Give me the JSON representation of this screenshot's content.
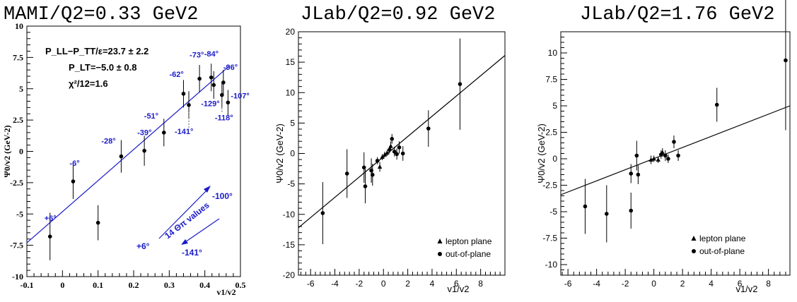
{
  "chart_data": [
    {
      "type": "scatter",
      "title": "MAMI/Q2=0.33 GeV2",
      "xlabel": "v1/v2",
      "ylabel": "Ψ0/v2 (GeV-2)",
      "xlim": [
        -0.1,
        0.5
      ],
      "ylim": [
        -10,
        10
      ],
      "xticks": [
        "-0.1",
        "0",
        "0.1",
        "0.2",
        "0.3",
        "0.4",
        "0.5"
      ],
      "yticks": [
        "-10",
        "-7.5",
        "-5",
        "-2.5",
        "0",
        "2.5",
        "5",
        "7.5",
        "10"
      ],
      "fit_line": {
        "x1": -0.1,
        "y1": -7.3,
        "x2": 0.47,
        "y2": 6.85,
        "color": "#1a1acc"
      },
      "annotations": [
        "P_LL−P_TT/ε=23.7 ± 2.2",
        "P_LT=−5.0 ± 0.8",
        "χ²/12=1.6"
      ],
      "arrow_labels": {
        "up": "-100°",
        "down": "-141°",
        "start": "+6°",
        "caption": "14 Θπ values"
      },
      "points": [
        {
          "x": -0.035,
          "y": -6.8,
          "err": 1.9,
          "angle": "+6°"
        },
        {
          "x": 0.03,
          "y": -2.4,
          "err": 1.4,
          "angle": "-6°"
        },
        {
          "x": 0.1,
          "y": -5.7,
          "err": 1.4,
          "angle": ""
        },
        {
          "x": 0.165,
          "y": -0.4,
          "err": 1.3,
          "angle": "-28°"
        },
        {
          "x": 0.23,
          "y": 0.05,
          "err": 1.2,
          "angle": "-39°"
        },
        {
          "x": 0.285,
          "y": 1.5,
          "err": 1.1,
          "angle": "-51°"
        },
        {
          "x": 0.34,
          "y": 4.6,
          "err": 1.1,
          "angle": "-62°"
        },
        {
          "x": 0.355,
          "y": 3.7,
          "err": 1.1,
          "angle": "-141°"
        },
        {
          "x": 0.385,
          "y": 5.8,
          "err": 1.1,
          "angle": "-73°"
        },
        {
          "x": 0.418,
          "y": 5.9,
          "err": 1.1,
          "angle": "-84°"
        },
        {
          "x": 0.425,
          "y": 5.3,
          "err": 1.1,
          "angle": "-129°"
        },
        {
          "x": 0.448,
          "y": 4.5,
          "err": 1.0,
          "angle": "-118°"
        },
        {
          "x": 0.452,
          "y": 5.5,
          "err": 1.0,
          "angle": "-96°"
        },
        {
          "x": 0.465,
          "y": 3.9,
          "err": 1.0,
          "angle": "-107°"
        }
      ]
    },
    {
      "type": "scatter",
      "title": "JLab/Q2=0.92 GeV2",
      "xlabel": "v1/v2",
      "ylabel": "Ψ0/v2 (GeV-2)",
      "xlim": [
        -7,
        10
      ],
      "ylim": [
        -20,
        20
      ],
      "xticks": [
        "-6",
        "-4",
        "-2",
        "0",
        "2",
        "4",
        "6",
        "8"
      ],
      "yticks": [
        "-20",
        "-15",
        "-10",
        "-5",
        "0",
        "5",
        "10",
        "15",
        "20"
      ],
      "fit_line": {
        "x1": -7,
        "y1": -12.2,
        "x2": 10,
        "y2": 16.1,
        "color": "#000000"
      },
      "legend": [
        "lepton plane",
        "out-of-plane"
      ],
      "legend_position": "bottom-right",
      "points": [
        {
          "x": -5.0,
          "y": -9.8,
          "err": 5.1,
          "marker": "circle"
        },
        {
          "x": -3.0,
          "y": -3.3,
          "err": 4.0,
          "marker": "circle"
        },
        {
          "x": -1.6,
          "y": -2.3,
          "err": 2.5,
          "marker": "circle"
        },
        {
          "x": -1.5,
          "y": -5.4,
          "err": 2.8,
          "marker": "circle"
        },
        {
          "x": -1.0,
          "y": -2.8,
          "err": 2.0,
          "marker": "circle"
        },
        {
          "x": -0.9,
          "y": -3.5,
          "err": 1.8,
          "marker": "circle"
        },
        {
          "x": -0.5,
          "y": -1.2,
          "err": 0.6,
          "marker": "circle"
        },
        {
          "x": -0.3,
          "y": -2.2,
          "err": 0.8,
          "marker": "triangle"
        },
        {
          "x": -0.1,
          "y": -0.6,
          "err": 0.5,
          "marker": "triangle"
        },
        {
          "x": 0.1,
          "y": -0.2,
          "err": 0.5,
          "marker": "triangle"
        },
        {
          "x": 0.3,
          "y": 0.1,
          "err": 0.5,
          "marker": "triangle"
        },
        {
          "x": 0.5,
          "y": 0.6,
          "err": 0.6,
          "marker": "circle"
        },
        {
          "x": 0.6,
          "y": 1.2,
          "err": 0.8,
          "marker": "triangle"
        },
        {
          "x": 0.7,
          "y": 2.4,
          "err": 0.8,
          "marker": "circle"
        },
        {
          "x": 0.9,
          "y": 0.3,
          "err": 0.8,
          "marker": "circle"
        },
        {
          "x": 1.1,
          "y": -0.1,
          "err": 0.9,
          "marker": "circle"
        },
        {
          "x": 1.3,
          "y": 1.0,
          "err": 1.0,
          "marker": "circle"
        },
        {
          "x": 1.6,
          "y": 0.0,
          "err": 1.2,
          "marker": "circle"
        },
        {
          "x": 3.7,
          "y": 4.1,
          "err": 3.0,
          "marker": "circle"
        },
        {
          "x": 6.3,
          "y": 11.4,
          "err": 7.5,
          "marker": "circle"
        }
      ]
    },
    {
      "type": "scatter",
      "title": "JLab/Q2=1.76 GeV2",
      "xlabel": "v1/v2",
      "ylabel": "Ψ0/v2 (GeV-2)",
      "xlim": [
        -6.5,
        9.5
      ],
      "ylim": [
        -11,
        12
      ],
      "xticks": [
        "-6",
        "-4",
        "-2",
        "0",
        "2",
        "4",
        "6",
        "8"
      ],
      "yticks": [
        "-10",
        "-7.5",
        "-5",
        "-2.5",
        "0",
        "2.5",
        "5",
        "7.5",
        "10"
      ],
      "fit_line": {
        "x1": -6.5,
        "y1": -3.4,
        "x2": 9.5,
        "y2": 5.0,
        "color": "#000000"
      },
      "legend": [
        "lepton plane",
        "out-of-plane"
      ],
      "legend_position": "bottom-right",
      "points": [
        {
          "x": -4.8,
          "y": -4.5,
          "err": 2.6,
          "marker": "circle"
        },
        {
          "x": -3.3,
          "y": -5.2,
          "err": 2.7,
          "marker": "circle"
        },
        {
          "x": -1.6,
          "y": -4.9,
          "err": 1.7,
          "marker": "circle"
        },
        {
          "x": -1.6,
          "y": -1.4,
          "err": 0.9,
          "marker": "circle"
        },
        {
          "x": -1.2,
          "y": 0.3,
          "err": 1.4,
          "marker": "circle"
        },
        {
          "x": -1.1,
          "y": -1.5,
          "err": 0.9,
          "marker": "circle"
        },
        {
          "x": -0.2,
          "y": -0.1,
          "err": 0.4,
          "marker": "triangle"
        },
        {
          "x": 0.0,
          "y": 0.0,
          "err": 0.3,
          "marker": "triangle"
        },
        {
          "x": 0.3,
          "y": -0.1,
          "err": 0.3,
          "marker": "triangle"
        },
        {
          "x": 0.5,
          "y": 0.4,
          "err": 0.4,
          "marker": "circle"
        },
        {
          "x": 0.6,
          "y": 0.6,
          "err": 0.4,
          "marker": "triangle"
        },
        {
          "x": 0.8,
          "y": 0.3,
          "err": 0.5,
          "marker": "circle"
        },
        {
          "x": 1.0,
          "y": 0.0,
          "err": 0.4,
          "marker": "circle"
        },
        {
          "x": 1.4,
          "y": 1.6,
          "err": 0.6,
          "marker": "circle"
        },
        {
          "x": 1.7,
          "y": 0.3,
          "err": 0.5,
          "marker": "circle"
        },
        {
          "x": 4.4,
          "y": 5.1,
          "err": 1.6,
          "marker": "circle"
        },
        {
          "x": 9.2,
          "y": 9.3,
          "err": 6.6,
          "marker": "circle"
        }
      ]
    }
  ]
}
